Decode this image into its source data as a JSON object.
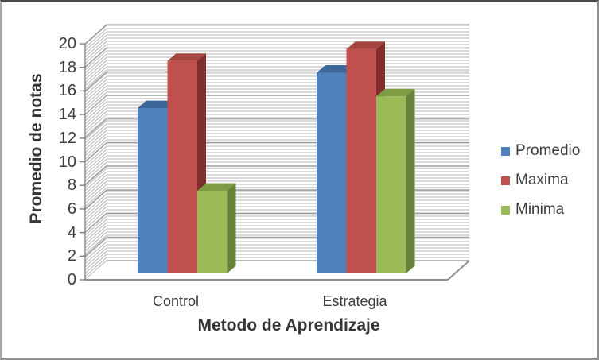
{
  "chart_data": {
    "type": "bar",
    "style": "3d-clustered-column",
    "title": "",
    "categories": [
      "Control",
      "Estrategia"
    ],
    "series": [
      {
        "name": "Promedio",
        "values": [
          14,
          17
        ],
        "color": "#4F81BD",
        "top_color": "#3C6899",
        "side_color": "#2E5277"
      },
      {
        "name": "Maxima",
        "values": [
          18,
          19
        ],
        "color": "#C0504D",
        "top_color": "#A4453F",
        "side_color": "#7F2E2B"
      },
      {
        "name": "Minima",
        "values": [
          7,
          15
        ],
        "color": "#9BBB59",
        "top_color": "#7F9C45",
        "side_color": "#67823A"
      }
    ],
    "xlabel": "Metodo de Aprendizaje",
    "ylabel": "Promedio de notas",
    "ylim": [
      0,
      20
    ],
    "ytick_step": 2,
    "yticks": [
      "0",
      "2",
      "4",
      "6",
      "8",
      "10",
      "12",
      "14",
      "16",
      "18",
      "20"
    ],
    "legend_position": "right",
    "grid": "horizontal-stripes",
    "gridline_color": "#b6b6b6",
    "axis_color": "#7f7f7f"
  }
}
